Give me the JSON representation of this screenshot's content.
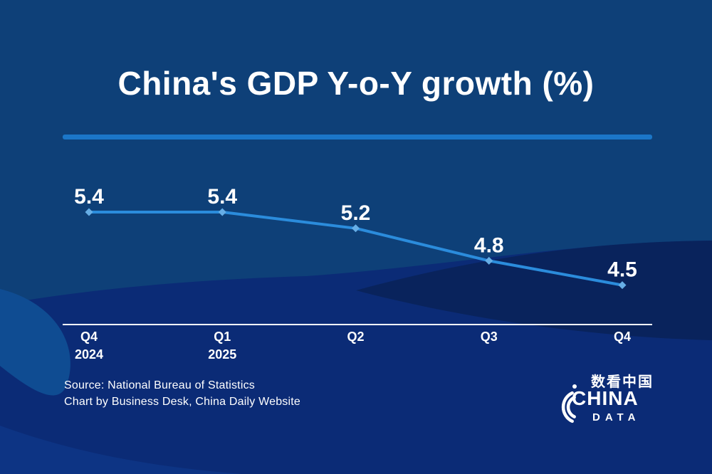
{
  "title": "China's GDP Y-o-Y growth (%)",
  "colors": {
    "base_bg": "#0E4078",
    "wave_royal": "#0B2B76",
    "wave_dark": "#09235C",
    "wave_light": "#0F4C92",
    "wave_bottom": "#0D3484",
    "divider": "#1B76C8",
    "line": "#2B8CDC",
    "marker": "#66AEE6",
    "axis": "#FFFFFF",
    "text": "#FFFFFF"
  },
  "chart_data": {
    "type": "line",
    "title": "China's GDP Y-o-Y growth (%)",
    "series_name": "GDP Y-o-Y growth (%)",
    "categories": [
      {
        "quarter": "Q4",
        "year": "2024"
      },
      {
        "quarter": "Q1",
        "year": "2025"
      },
      {
        "quarter": "Q2",
        "year": ""
      },
      {
        "quarter": "Q3",
        "year": ""
      },
      {
        "quarter": "Q4",
        "year": ""
      }
    ],
    "values": [
      5.4,
      5.4,
      5.2,
      4.8,
      4.5
    ],
    "data_labels": [
      "5.4",
      "5.4",
      "5.2",
      "4.8",
      "4.5"
    ],
    "xlabel": "",
    "ylabel": "",
    "ylim": [
      4.2,
      5.6
    ],
    "grid": false,
    "legend": "none",
    "marker_shape": "diamond"
  },
  "footer": {
    "source_line1": "Source: National Bureau of Statistics",
    "source_line2": "Chart by Business Desk, China Daily Website"
  },
  "logo": {
    "chinese": "数看中国",
    "line1": "CHINA",
    "line2": "DATA"
  }
}
